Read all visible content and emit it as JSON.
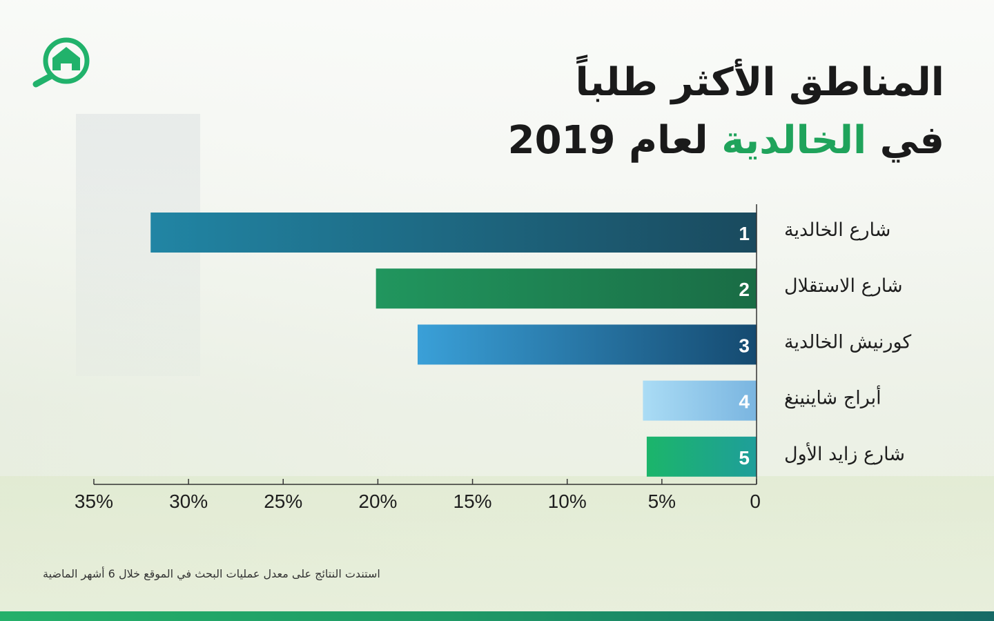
{
  "title": {
    "line1": "المناطق الأكثر طلباً",
    "line2_pre": "في ",
    "line2_accent": "الخالدية",
    "line2_post": " لعام 2019"
  },
  "logo": {
    "icon": "home-search-icon",
    "color": "#21b26b"
  },
  "colors": {
    "accent": "#1fa35b",
    "footer_bar": "#1f9a66"
  },
  "chart_data": {
    "type": "bar",
    "orientation": "horizontal",
    "x_direction": "right-to-left",
    "categories": [
      "شارع الخالدية",
      "شارع الاستقلال",
      "كورنيش الخالدية",
      "أبراج شاينينغ",
      "شارع زايد الأول"
    ],
    "ranks": [
      "1",
      "2",
      "3",
      "4",
      "5"
    ],
    "values": [
      32,
      20.1,
      17.9,
      6,
      5.8
    ],
    "unit": "%",
    "xlim": [
      0,
      35
    ],
    "ticks": [
      "0",
      "5%",
      "10%",
      "15%",
      "20%",
      "25%",
      "30%",
      "35%"
    ],
    "tick_values": [
      0,
      5,
      10,
      15,
      20,
      25,
      30,
      35
    ],
    "bar_colors": [
      [
        "#1a4a5e",
        "#2185a4"
      ],
      [
        "#1a6c45",
        "#21965e"
      ],
      [
        "#154a70",
        "#3aa0d8"
      ],
      [
        "#7ab5e0",
        "#aadcf5"
      ],
      [
        "#1f9e9a",
        "#1bb56a"
      ]
    ],
    "grid": false,
    "legend": "none"
  },
  "footnote": "استندت النتائج على معدل عمليات البحث في الموقع خلال 6 أشهر الماضية"
}
